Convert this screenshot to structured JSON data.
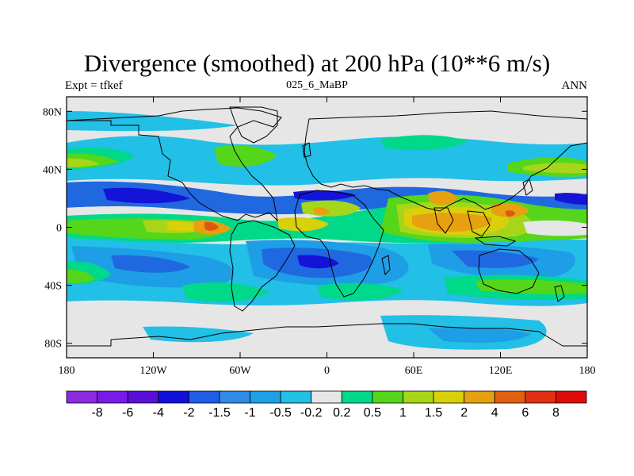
{
  "title": "Divergence (smoothed) at 200 hPa (10**6 m/s)",
  "left_label": "Expt = tfkef",
  "center_label": "025_6_MaBP",
  "right_label": "ANN",
  "map": {
    "lon_range": [
      -180,
      180
    ],
    "lat_range": [
      -90,
      90
    ],
    "lon_ticks": [
      {
        "value": -180,
        "label": "180"
      },
      {
        "value": -120,
        "label": "120W"
      },
      {
        "value": -60,
        "label": "60W"
      },
      {
        "value": 0,
        "label": "0"
      },
      {
        "value": 60,
        "label": "60E"
      },
      {
        "value": 120,
        "label": "120E"
      },
      {
        "value": 180,
        "label": "180"
      }
    ],
    "lat_ticks": [
      {
        "value": 80,
        "label": "80N"
      },
      {
        "value": 40,
        "label": "40N"
      },
      {
        "value": 0,
        "label": "0"
      },
      {
        "value": -40,
        "label": "40S"
      },
      {
        "value": -80,
        "label": "80S"
      }
    ]
  },
  "colorbar": {
    "colors": [
      "#8a2be2",
      "#7a1ae6",
      "#5a0fd6",
      "#1010d8",
      "#1f5ee6",
      "#2f8be6",
      "#1ea0e6",
      "#22bfe6",
      "#e6e6e6",
      "#00d88a",
      "#55d61a",
      "#a6d61a",
      "#d8d00a",
      "#e6a010",
      "#e06010",
      "#e03010",
      "#e00a0a"
    ],
    "labels": [
      "-8",
      "-6",
      "-4",
      "-2",
      "-1.5",
      "-1",
      "-0.5",
      "-0.2",
      "0.2",
      "0.5",
      "1",
      "1.5",
      "2",
      "4",
      "6",
      "8"
    ]
  },
  "field_colors": {
    "neutral": "#e6e6e6",
    "neg_1": "#22bfe6",
    "neg_2": "#1e9ee6",
    "neg_3": "#2068e0",
    "neg_4": "#1414d8",
    "pos_1": "#00d88a",
    "pos_2": "#55d61a",
    "pos_3": "#a6d61a",
    "pos_4": "#d8d00a",
    "pos_5": "#e6a010",
    "pos_6": "#e05810"
  }
}
